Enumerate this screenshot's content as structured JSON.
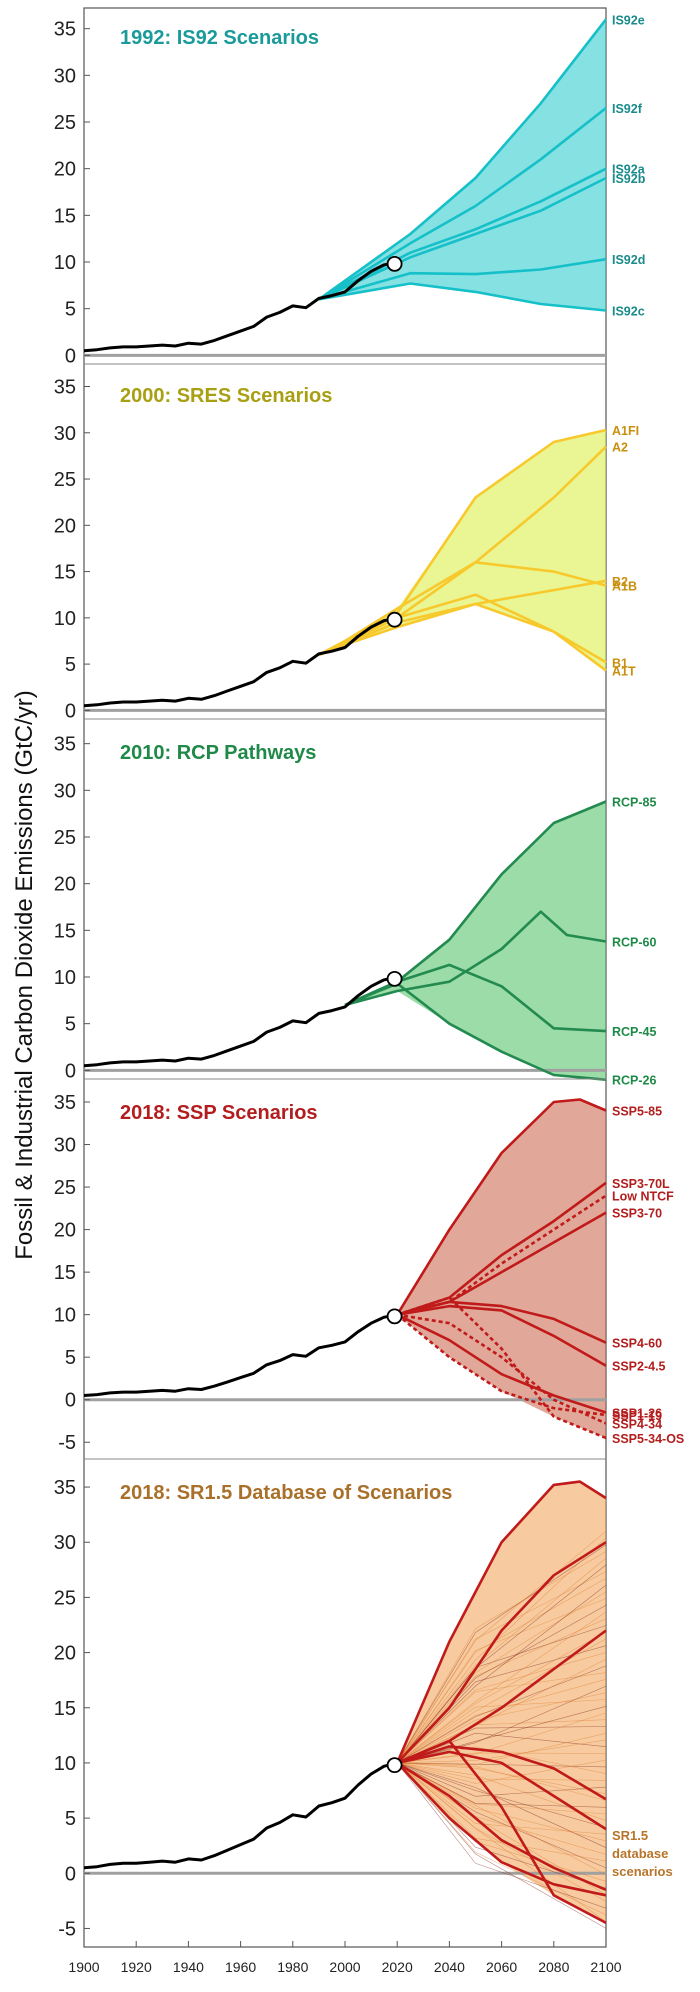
{
  "figure": {
    "ylabel": "Fossil & Industrial Carbon Dioxide Emissions (GtC/yr)",
    "xticks": [
      "1900",
      "1920",
      "1940",
      "1960",
      "1980",
      "2000",
      "2020",
      "2040",
      "2060",
      "2080",
      "2100"
    ]
  },
  "chart_data": [
    {
      "type": "area",
      "title": "1992: IS92 Scenarios",
      "title_color": "#1a9a9a",
      "label_color": "#1a8a8a",
      "yticks": [
        "0",
        "5",
        "10",
        "15",
        "20",
        "25",
        "30",
        "35"
      ],
      "ylim": [
        -0.5,
        37
      ],
      "xlim": [
        1900,
        2100
      ],
      "fill_color": "#22c8cc",
      "line_color": "#15c0c8",
      "series": [
        {
          "name": "IS92e",
          "x": [
            1990,
            2025,
            2050,
            2075,
            2100
          ],
          "y": [
            6,
            13,
            19,
            27,
            36
          ]
        },
        {
          "name": "IS92f",
          "x": [
            1990,
            2025,
            2050,
            2075,
            2100
          ],
          "y": [
            6,
            12,
            16,
            21,
            26.5
          ]
        },
        {
          "name": "IS92a",
          "x": [
            1990,
            2025,
            2050,
            2075,
            2100
          ],
          "y": [
            6,
            11,
            13.5,
            16.5,
            20
          ]
        },
        {
          "name": "IS92b",
          "x": [
            1990,
            2025,
            2050,
            2075,
            2100
          ],
          "y": [
            6,
            10.5,
            13,
            15.5,
            19
          ]
        },
        {
          "name": "IS92d",
          "x": [
            1990,
            2025,
            2050,
            2075,
            2100
          ],
          "y": [
            6,
            8.8,
            8.7,
            9.2,
            10.3
          ]
        },
        {
          "name": "IS92c",
          "x": [
            1990,
            2025,
            2050,
            2075,
            2100
          ],
          "y": [
            6,
            7.7,
            6.8,
            5.5,
            4.8
          ]
        }
      ]
    },
    {
      "type": "area",
      "title": "2000: SRES Scenarios",
      "title_color": "#a8a012",
      "label_color": "#c9900f",
      "yticks": [
        "0",
        "5",
        "10",
        "15",
        "20",
        "25",
        "30",
        "35"
      ],
      "ylim": [
        -0.5,
        37
      ],
      "xlim": [
        1900,
        2100
      ],
      "fill_color": "#d8ec3a",
      "line_color": "#f8c92c",
      "series": [
        {
          "name": "A1FI",
          "x": [
            1990,
            2000,
            2020,
            2050,
            2080,
            2100
          ],
          "y": [
            6,
            7.5,
            10.5,
            23,
            29,
            30.3
          ]
        },
        {
          "name": "A2",
          "x": [
            1990,
            2000,
            2020,
            2050,
            2080,
            2100
          ],
          "y": [
            6,
            7.3,
            10,
            16,
            23,
            28.5
          ]
        },
        {
          "name": "B2",
          "x": [
            1990,
            2000,
            2020,
            2050,
            2080,
            2100
          ],
          "y": [
            6,
            7.1,
            9,
            11.5,
            13,
            14
          ]
        },
        {
          "name": "A1B",
          "x": [
            1990,
            2000,
            2020,
            2050,
            2080,
            2100
          ],
          "y": [
            6,
            7.5,
            11,
            16,
            15,
            13.5
          ]
        },
        {
          "name": "B1",
          "x": [
            1990,
            2000,
            2020,
            2050,
            2080,
            2100
          ],
          "y": [
            6,
            7.2,
            9.5,
            11.5,
            8.5,
            5.2
          ]
        },
        {
          "name": "A1T",
          "x": [
            1990,
            2000,
            2020,
            2050,
            2080,
            2100
          ],
          "y": [
            6,
            7.3,
            10,
            12.5,
            8.5,
            4.3
          ]
        }
      ]
    },
    {
      "type": "area",
      "title": "2010: RCP Pathways",
      "title_color": "#1f8a48",
      "label_color": "#1f8a48",
      "yticks": [
        "0",
        "5",
        "10",
        "15",
        "20",
        "25",
        "30",
        "35"
      ],
      "ylim": [
        -0.5,
        37
      ],
      "xlim": [
        1900,
        2100
      ],
      "fill_color": "#48c060",
      "line_color": "#238a50",
      "series": [
        {
          "name": "RCP-85",
          "x": [
            2000,
            2020,
            2040,
            2060,
            2080,
            2100
          ],
          "y": [
            7,
            9.5,
            14,
            21,
            26.5,
            28.8
          ]
        },
        {
          "name": "RCP-60",
          "x": [
            2000,
            2020,
            2040,
            2060,
            2075,
            2085,
            2100
          ],
          "y": [
            7,
            8.5,
            9.5,
            13,
            17,
            14.5,
            13.8
          ]
        },
        {
          "name": "RCP-45",
          "x": [
            2000,
            2020,
            2040,
            2060,
            2080,
            2100
          ],
          "y": [
            7,
            9.5,
            11.3,
            9,
            4.5,
            4.2
          ]
        },
        {
          "name": "RCP-26",
          "x": [
            2000,
            2020,
            2040,
            2060,
            2080,
            2100
          ],
          "y": [
            7,
            9.3,
            5,
            2,
            -0.5,
            -1
          ]
        }
      ]
    },
    {
      "type": "area",
      "title": "2018: SSP Scenarios",
      "title_color": "#b31d1d",
      "label_color": "#b31d1d",
      "yticks": [
        "-5",
        "0",
        "5",
        "10",
        "15",
        "20",
        "25",
        "30",
        "35"
      ],
      "ylim": [
        -6.5,
        37
      ],
      "xlim": [
        1900,
        2100
      ],
      "fill_color": "#c86046",
      "line_color": "#c01a1a",
      "series": [
        {
          "name": "SSP5-85",
          "x": [
            2020,
            2040,
            2060,
            2080,
            2090,
            2100
          ],
          "y": [
            10,
            20,
            29,
            35,
            35.3,
            34
          ]
        },
        {
          "name": "SSP3-70L",
          "x": [
            2020,
            2040,
            2060,
            2080,
            2100
          ],
          "y": [
            10,
            12,
            17,
            21,
            25.5
          ]
        },
        {
          "name": "Low NTCF",
          "x": [
            2020,
            2040,
            2060,
            2080,
            2100
          ],
          "y": [
            10,
            11.5,
            16,
            20,
            24
          ]
        },
        {
          "name": "SSP3-70",
          "x": [
            2020,
            2040,
            2060,
            2080,
            2100
          ],
          "y": [
            10,
            11.5,
            15,
            18.5,
            22
          ]
        },
        {
          "name": "SSP4-60",
          "x": [
            2020,
            2040,
            2060,
            2080,
            2100
          ],
          "y": [
            10,
            11.5,
            11,
            9.5,
            6.7
          ]
        },
        {
          "name": "SSP2-4.5",
          "x": [
            2020,
            2040,
            2060,
            2080,
            2100
          ],
          "y": [
            10,
            11,
            10.5,
            7.5,
            4
          ]
        },
        {
          "name": "SSP1-26",
          "x": [
            2020,
            2040,
            2060,
            2080,
            2100
          ],
          "y": [
            10,
            7,
            3,
            0.5,
            -1.5
          ]
        },
        {
          "name": "SSP1-19",
          "x": [
            2020,
            2040,
            2060,
            2080,
            2100
          ],
          "y": [
            10,
            5,
            1,
            -1,
            -1.8
          ]
        },
        {
          "name": "SSP4-34",
          "x": [
            2020,
            2040,
            2060,
            2080,
            2100
          ],
          "y": [
            10,
            9,
            5,
            0,
            -2.8
          ]
        },
        {
          "name": "SSP5-34-OS",
          "x": [
            2020,
            2040,
            2060,
            2080,
            2100
          ],
          "y": [
            10,
            12,
            6,
            -2,
            -4.5
          ]
        }
      ]
    },
    {
      "type": "line",
      "title": "2018: SR1.5 Database of Scenarios",
      "title_color": "#a9702a",
      "label_color": "#b8742a",
      "yticks": [
        "-5",
        "0",
        "5",
        "10",
        "15",
        "20",
        "25",
        "30",
        "35"
      ],
      "ylim": [
        -6.5,
        37
      ],
      "xlim": [
        1900,
        2100
      ],
      "fill_color": "#f0a050",
      "line_color": "#c01a1a",
      "annotation": "SR1.5 database scenarios",
      "series": [
        {
          "name": "",
          "x": [
            2020,
            2040,
            2060,
            2080,
            2090,
            2100
          ],
          "y": [
            10,
            21,
            30,
            35.2,
            35.5,
            34
          ]
        },
        {
          "name": "",
          "x": [
            2020,
            2040,
            2060,
            2080,
            2100
          ],
          "y": [
            10,
            15,
            22,
            27,
            30
          ]
        },
        {
          "name": "",
          "x": [
            2020,
            2040,
            2060,
            2080,
            2100
          ],
          "y": [
            10,
            12,
            15,
            18.5,
            22
          ]
        },
        {
          "name": "",
          "x": [
            2020,
            2040,
            2060,
            2080,
            2100
          ],
          "y": [
            10,
            11.5,
            11,
            9.5,
            6.7
          ]
        },
        {
          "name": "",
          "x": [
            2020,
            2040,
            2060,
            2080,
            2100
          ],
          "y": [
            10,
            11,
            10,
            7,
            4
          ]
        },
        {
          "name": "",
          "x": [
            2020,
            2040,
            2060,
            2080,
            2100
          ],
          "y": [
            10,
            7,
            3,
            0.5,
            -1.5
          ]
        },
        {
          "name": "",
          "x": [
            2020,
            2040,
            2060,
            2080,
            2100
          ],
          "y": [
            10,
            5,
            1,
            -1,
            -2
          ]
        },
        {
          "name": "",
          "x": [
            2020,
            2040,
            2060,
            2080,
            2100
          ],
          "y": [
            10,
            12,
            6,
            -2,
            -4.5
          ]
        }
      ]
    }
  ],
  "historical": {
    "x": [
      1900,
      1905,
      1910,
      1915,
      1920,
      1925,
      1930,
      1935,
      1940,
      1945,
      1950,
      1955,
      1960,
      1965,
      1970,
      1975,
      1980,
      1985,
      1990,
      1995,
      2000,
      2005,
      2010,
      2015,
      2019
    ],
    "y": [
      0.5,
      0.6,
      0.8,
      0.9,
      0.9,
      1.0,
      1.1,
      1.0,
      1.3,
      1.2,
      1.6,
      2.1,
      2.6,
      3.1,
      4.1,
      4.6,
      5.3,
      5.1,
      6.1,
      6.4,
      6.8,
      8.0,
      9.0,
      9.7,
      9.9
    ]
  },
  "current_point": {
    "x": 2019,
    "y": 9.8
  }
}
